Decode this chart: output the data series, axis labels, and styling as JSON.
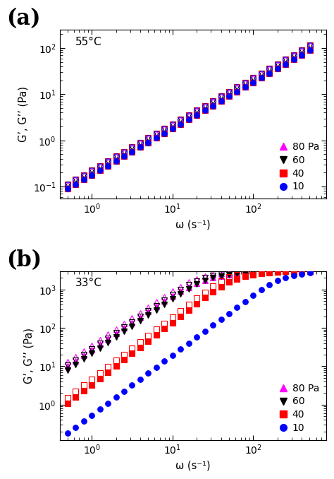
{
  "panel_a": {
    "title": "55°C",
    "label": "(a)",
    "xlim": [
      0.4,
      800
    ],
    "ylim": [
      0.055,
      250
    ],
    "ylabel": "G’, G’’ (Pa)",
    "xlabel": "ω (s⁻¹)",
    "omega": [
      0.5,
      0.63,
      0.794,
      1.0,
      1.26,
      1.585,
      2.0,
      2.51,
      3.16,
      3.98,
      5.01,
      6.31,
      7.94,
      10.0,
      12.6,
      15.85,
      20.0,
      25.1,
      31.6,
      39.8,
      50.1,
      63.1,
      79.4,
      100.0,
      125.9,
      158.5,
      199.5,
      251.2,
      316.2,
      398.1,
      501.2
    ],
    "series": {
      "80": {
        "Gprime": [
          0.09,
          0.113,
          0.142,
          0.179,
          0.225,
          0.284,
          0.357,
          0.45,
          0.566,
          0.713,
          0.898,
          1.131,
          1.424,
          1.793,
          2.258,
          2.843,
          3.579,
          4.508,
          5.677,
          7.149,
          9.002,
          11.33,
          14.27,
          17.97,
          22.64,
          28.5,
          35.89,
          45.19,
          56.93,
          71.68,
          90.26
        ],
        "Gdprime": [
          0.113,
          0.142,
          0.179,
          0.225,
          0.284,
          0.357,
          0.45,
          0.566,
          0.713,
          0.898,
          1.131,
          1.424,
          1.793,
          2.258,
          2.843,
          3.579,
          4.508,
          5.677,
          7.149,
          9.002,
          11.33,
          14.27,
          17.97,
          22.64,
          28.5,
          35.89,
          45.19,
          56.93,
          71.68,
          90.26,
          113.7
        ],
        "color_solid": "#ff00ff",
        "color_open": "#ff00ff",
        "marker_solid": "^",
        "marker_open": "^"
      },
      "60": {
        "Gprime": [
          0.09,
          0.113,
          0.142,
          0.179,
          0.225,
          0.284,
          0.357,
          0.45,
          0.566,
          0.713,
          0.898,
          1.131,
          1.424,
          1.793,
          2.258,
          2.843,
          3.579,
          4.508,
          5.677,
          7.149,
          9.002,
          11.33,
          14.27,
          17.97,
          22.64,
          28.5,
          35.89,
          45.19,
          56.93,
          71.68,
          90.26
        ],
        "Gdprime": [
          0.113,
          0.142,
          0.179,
          0.225,
          0.284,
          0.357,
          0.45,
          0.566,
          0.713,
          0.898,
          1.131,
          1.424,
          1.793,
          2.258,
          2.843,
          3.579,
          4.508,
          5.677,
          7.149,
          9.002,
          11.33,
          14.27,
          17.97,
          22.64,
          28.5,
          35.89,
          45.19,
          56.93,
          71.68,
          90.26,
          113.7
        ],
        "color_solid": "#000000",
        "color_open": "#000000",
        "marker_solid": "v",
        "marker_open": "v"
      },
      "40": {
        "Gprime": [
          0.09,
          0.113,
          0.142,
          0.179,
          0.225,
          0.284,
          0.357,
          0.45,
          0.566,
          0.713,
          0.898,
          1.131,
          1.424,
          1.793,
          2.258,
          2.843,
          3.579,
          4.508,
          5.677,
          7.149,
          9.002,
          11.33,
          14.27,
          17.97,
          22.64,
          28.5,
          35.89,
          45.19,
          56.93,
          71.68,
          90.26
        ],
        "Gdprime": [
          0.113,
          0.142,
          0.179,
          0.225,
          0.284,
          0.357,
          0.45,
          0.566,
          0.713,
          0.898,
          1.131,
          1.424,
          1.793,
          2.258,
          2.843,
          3.579,
          4.508,
          5.677,
          7.149,
          9.002,
          11.33,
          14.27,
          17.97,
          22.64,
          28.5,
          35.89,
          45.19,
          56.93,
          71.68,
          90.26,
          113.7
        ],
        "color_solid": "#ff0000",
        "color_open": "#ff0000",
        "marker_solid": "s",
        "marker_open": "s"
      },
      "10": {
        "Gprime": [
          0.09,
          0.113,
          0.142,
          0.179,
          0.225,
          0.284,
          0.357,
          0.45,
          0.566,
          0.713,
          0.898,
          1.131,
          1.424,
          1.793,
          2.258,
          2.843,
          3.579,
          4.508,
          5.677,
          7.149,
          9.002,
          11.33,
          14.27,
          17.97,
          22.64,
          28.5,
          35.89,
          45.19,
          56.93,
          71.68,
          90.26
        ],
        "Gdprime": [
          0.113,
          0.142,
          0.179,
          0.225,
          0.284,
          0.357,
          0.45,
          0.566,
          0.713,
          0.898,
          1.131,
          1.424,
          1.793,
          2.258,
          2.843,
          3.579,
          4.508,
          5.677,
          7.149,
          9.002,
          11.33,
          14.27,
          17.97,
          22.64,
          28.5,
          35.89,
          45.19,
          56.93,
          71.68,
          90.26,
          113.7
        ],
        "color_solid": "#0000ff",
        "color_open": "#0000ff",
        "marker_solid": "o",
        "marker_open": "o"
      }
    }
  },
  "panel_b": {
    "title": "33°C",
    "label": "(b)",
    "xlim": [
      0.4,
      800
    ],
    "ylim": [
      0.12,
      3000
    ],
    "ylabel": "G’, G’’ (Pa)",
    "xlabel": "ω (s⁻¹)",
    "omega": [
      0.5,
      0.63,
      0.794,
      1.0,
      1.26,
      1.585,
      2.0,
      2.51,
      3.16,
      3.98,
      5.01,
      6.31,
      7.94,
      10.0,
      12.6,
      15.85,
      20.0,
      25.1,
      31.6,
      39.8,
      50.1,
      63.1,
      79.4,
      100.0,
      125.9,
      158.5,
      199.5,
      251.2,
      316.2,
      398.1,
      501.2
    ],
    "series": {
      "80": {
        "Gprime": [
          10.0,
          14.0,
          19.5,
          27.0,
          37.5,
          52.0,
          72.0,
          100,
          138,
          191,
          265,
          366,
          500,
          680,
          900,
          1150,
          1450,
          1750,
          2000,
          2200,
          2400,
          2550,
          2700,
          2800,
          2900,
          3000,
          3000,
          3000,
          3000,
          3000,
          3000
        ],
        "Gdprime": [
          13.0,
          18.0,
          25.0,
          35.0,
          49.0,
          68.0,
          94.0,
          130,
          180,
          249,
          345,
          477,
          660,
          900,
          1200,
          1550,
          1900,
          2200,
          2450,
          2650,
          2800,
          2900,
          2950,
          3000,
          3000,
          3000,
          3000,
          3000,
          3000,
          3000,
          3000
        ],
        "color_solid": "#ff00ff",
        "color_open": "#ff00ff",
        "marker_solid": "^",
        "marker_open": "^"
      },
      "60": {
        "Gprime": [
          8.0,
          11.0,
          15.5,
          21.5,
          30.0,
          41.5,
          57.5,
          80.0,
          111,
          154,
          213,
          295,
          408,
          565,
          780,
          1050,
          1380,
          1720,
          2000,
          2200,
          2380,
          2520,
          2650,
          2750,
          2830,
          2900,
          2950,
          3000,
          3000,
          3000,
          3000
        ],
        "Gdprime": [
          10.5,
          14.5,
          20.0,
          28.0,
          39.0,
          54.0,
          75.0,
          104,
          144,
          199,
          276,
          382,
          528,
          730,
          1000,
          1330,
          1680,
          2000,
          2270,
          2490,
          2670,
          2810,
          2910,
          2970,
          3000,
          3000,
          3000,
          3000,
          3000,
          3000,
          3000
        ],
        "color_solid": "#000000",
        "color_open": "#000000",
        "marker_solid": "v",
        "marker_open": "v"
      },
      "40": {
        "Gprime": [
          1.1,
          1.6,
          2.3,
          3.3,
          4.8,
          7.0,
          10.2,
          14.8,
          21.5,
          31.2,
          45.3,
          65.8,
          95.5,
          138,
          200,
          291,
          422,
          612,
          888,
          1200,
          1550,
          1900,
          2200,
          2450,
          2650,
          2800,
          2900,
          2950,
          3000,
          3000,
          3000
        ],
        "Gdprime": [
          1.5,
          2.2,
          3.2,
          4.6,
          6.7,
          9.7,
          14.1,
          20.5,
          29.8,
          43.2,
          62.7,
          91.0,
          132,
          192,
          278,
          403,
          585,
          848,
          1230,
          1680,
          2100,
          2430,
          2680,
          2860,
          2970,
          3000,
          3000,
          3000,
          3000,
          3000,
          3000
        ],
        "color_solid": "#ff0000",
        "color_open": "#ff0000",
        "marker_solid": "s",
        "marker_open": "s"
      },
      "10": {
        "Gprime": [
          0.18,
          0.26,
          0.37,
          0.53,
          0.76,
          1.09,
          1.56,
          2.24,
          3.21,
          4.6,
          6.6,
          9.45,
          13.5,
          19.4,
          27.8,
          39.8,
          57.0,
          81.6,
          117,
          167,
          239,
          342,
          490,
          700,
          1000,
          1350,
          1700,
          2050,
          2320,
          2550,
          2750
        ],
        "Gdprime": null,
        "color_solid": "#0000ff",
        "color_open": null,
        "marker_solid": "o",
        "marker_open": null
      }
    }
  },
  "legend_labels": [
    "80 Pa",
    "60",
    "40",
    "10"
  ],
  "legend_colors": [
    "#ff00ff",
    "#000000",
    "#ff0000",
    "#0000ff"
  ],
  "legend_markers": [
    "^",
    "v",
    "s",
    "o"
  ],
  "background_color": "#ffffff"
}
